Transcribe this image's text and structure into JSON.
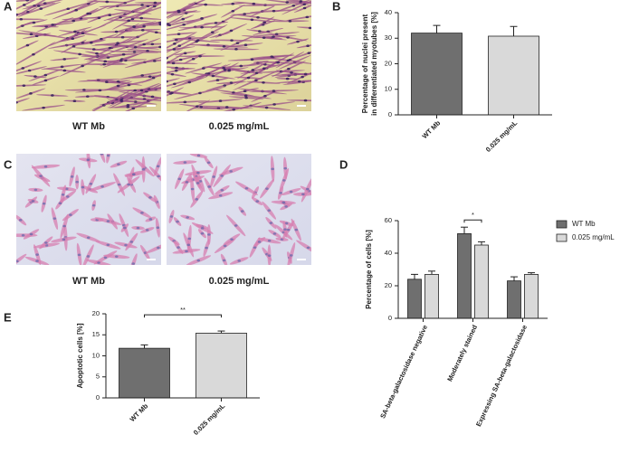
{
  "image_panels": [
    {
      "letter": "A",
      "captions": [
        "WT Mb",
        "0.025 mg/mL"
      ]
    },
    {
      "letter": "C",
      "captions": [
        "WT Mb",
        "0.025 mg/mL"
      ]
    }
  ],
  "chart_data": [
    {
      "type": "bar",
      "panel": "B",
      "ylabel": [
        "Percentage of nuclei present",
        "in differentiated myotubes [%]"
      ],
      "categories": [
        "WT Mb",
        "0.025 mg/mL"
      ],
      "values": [
        32,
        30.8
      ],
      "errors": [
        3,
        3.8
      ],
      "colors": [
        "#6f6f6f",
        "#d9d9d9"
      ],
      "ylim": [
        0,
        40
      ],
      "yticks": [
        0,
        10,
        20,
        30,
        40
      ]
    },
    {
      "type": "grouped_bar",
      "panel": "D",
      "ylabel": "Percentage of cells [%]",
      "categories": [
        "SA-beta-galactosidase negative",
        "Moderately stained",
        "Expressing SA-beta-galactosidase"
      ],
      "series": [
        {
          "name": "WT Mb",
          "color": "#6f6f6f",
          "values": [
            24,
            52,
            23
          ],
          "errors": [
            3,
            4,
            2.5
          ]
        },
        {
          "name": "0.025 mg/mL",
          "color": "#d9d9d9",
          "values": [
            27,
            45,
            27
          ],
          "errors": [
            2,
            2,
            1
          ]
        }
      ],
      "ylim": [
        0,
        60
      ],
      "yticks": [
        0,
        20,
        40,
        60
      ],
      "annotation": "*",
      "legend": "right"
    },
    {
      "type": "bar",
      "panel": "E",
      "ylabel": "Apoptotic cells [%]",
      "categories": [
        "WT Mb",
        "0.025 mg/mL"
      ],
      "values": [
        11.8,
        15.4
      ],
      "errors": [
        0.8,
        0.5
      ],
      "colors": [
        "#6f6f6f",
        "#d9d9d9"
      ],
      "ylim": [
        0,
        20
      ],
      "yticks": [
        0,
        5,
        10,
        15,
        20
      ],
      "annotation": "**"
    }
  ]
}
